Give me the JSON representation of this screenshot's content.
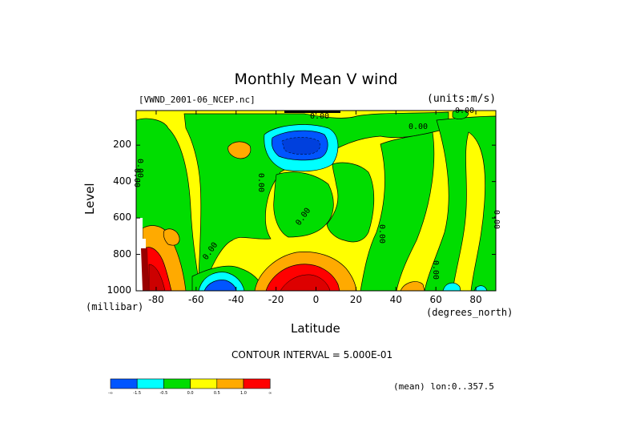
{
  "chart_data": {
    "type": "heatmap",
    "title": "Monthly Mean V wind",
    "dataset_label": "[VWND_2001-06_NCEP.nc]",
    "units_label": "(units:m/s)",
    "xlabel": "Latitude",
    "x_units_label": "(degrees_north)",
    "ylabel": "Level",
    "y_units_label": "(millibar)",
    "xlim": [
      -90,
      90
    ],
    "ylim": [
      1000,
      10
    ],
    "y_inverted": true,
    "x_ticks": [
      -80,
      -60,
      -40,
      -20,
      0,
      20,
      40,
      60,
      80
    ],
    "x_tick_labels": [
      "-80",
      "-60",
      "-40",
      "-20",
      "0",
      "20",
      "40",
      "60",
      "80"
    ],
    "y_ticks": [
      200,
      400,
      600,
      800,
      1000
    ],
    "y_tick_labels": [
      "200",
      "400",
      "600",
      "800",
      "1000"
    ],
    "contour_interval_label": "CONTOUR INTERVAL = 5.000E-01",
    "mean_label": "(mean) lon:0..357.5",
    "contour_labels": [
      "0.00",
      "0.00",
      "0.00",
      "0.00",
      "0.00",
      "0.00",
      "0.00",
      "0.00",
      "0.00",
      "0.00",
      "0.00"
    ],
    "colorbar": {
      "colors": [
        "#0055ff",
        "#00ffff",
        "#00dd00",
        "#ffff00",
        "#ffaa00",
        "#ff0000"
      ],
      "labels": [
        "-∞",
        "-1.5",
        "-0.5",
        "0.0",
        "0.5",
        "1.0",
        "∞"
      ]
    },
    "regions_note": "filled contour field of zonal-mean meridional wind"
  }
}
